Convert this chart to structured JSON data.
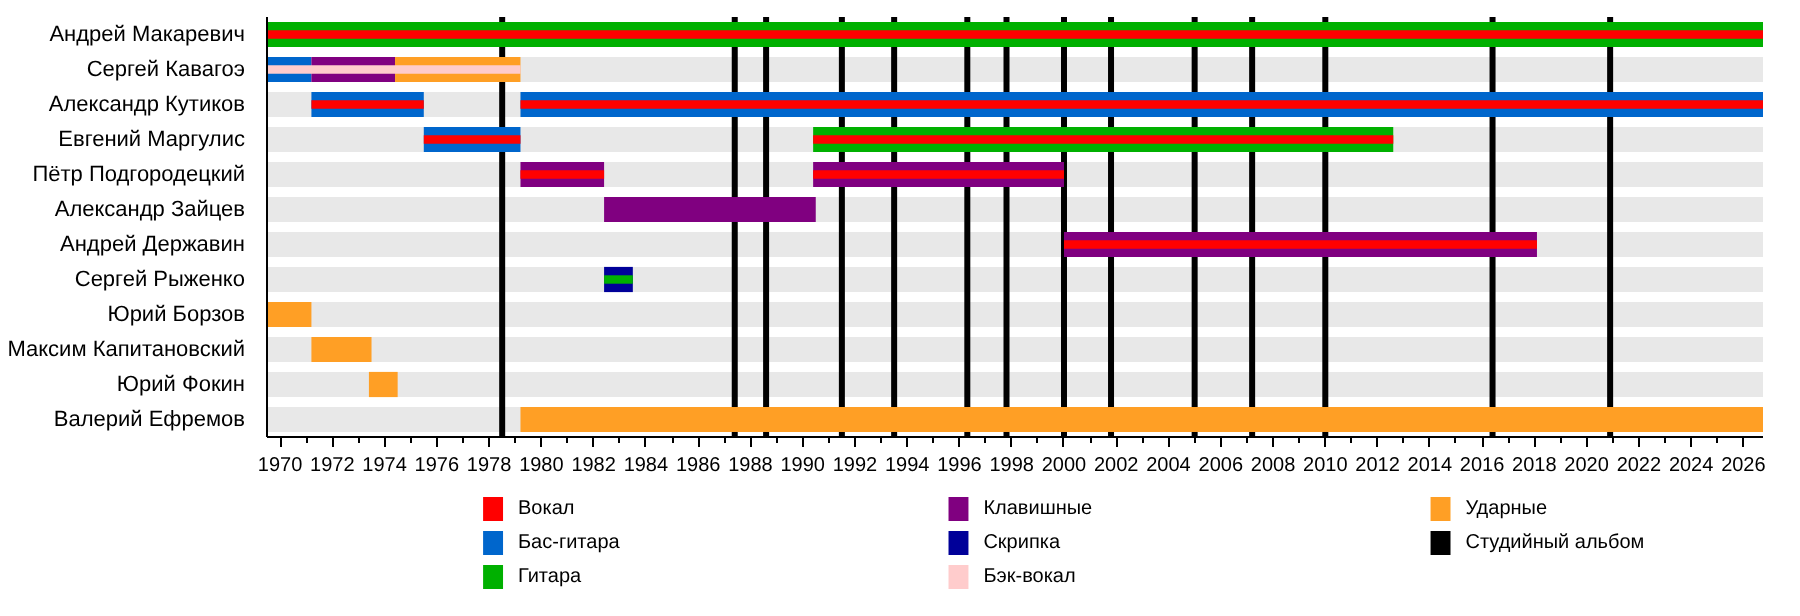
{
  "chart_data": {
    "type": "bar",
    "orientation": "horizontal",
    "categories": [
      "Андрей Макаревич",
      "Сергей Кавагоэ",
      "Александр Кутиков",
      "Евгений Маргулис",
      "Пётр Подгородецкий",
      "Александр Зайцев",
      "Андрей Державин",
      "Сергей Рыженко",
      "Юрий Борзов",
      "Максим Капитановский",
      "Юрий Фокин",
      "Валерий Ефремов"
    ],
    "series": [
      {
        "name": "Вокал",
        "color": "#ff0000",
        "base": [
          1969.5,
          null,
          1971.2,
          1975.5,
          1979.2,
          null,
          2000.0,
          null,
          null,
          null,
          null,
          null
        ],
        "values": [
          57.25,
          null,
          4.3,
          3.7,
          3.2,
          null,
          18.1,
          null,
          null,
          null,
          null,
          null
        ]
      },
      {
        "name": "Бас-гитара",
        "color": "#0066cc",
        "base": [
          null,
          1969.5,
          1971.2,
          1975.5,
          null,
          null,
          null,
          null,
          null,
          null,
          null,
          null
        ],
        "values": [
          null,
          1.7,
          4.3,
          3.7,
          null,
          null,
          null,
          null,
          null,
          null,
          null,
          null
        ]
      },
      {
        "name": "Гитара",
        "color": "#00b000",
        "base": [
          1969.5,
          null,
          null,
          null,
          null,
          null,
          null,
          1982.4,
          null,
          null,
          null,
          null
        ],
        "values": [
          57.25,
          null,
          null,
          null,
          null,
          null,
          null,
          1.1,
          null,
          null,
          null,
          null
        ]
      },
      {
        "name": "Клавишные",
        "color": "#800080",
        "base": [
          null,
          1971.2,
          null,
          null,
          1979.2,
          1982.4,
          2000.0,
          null,
          null,
          null,
          null,
          null
        ],
        "values": [
          null,
          3.2,
          null,
          null,
          3.2,
          8.1,
          18.1,
          null,
          null,
          null,
          null,
          null
        ]
      },
      {
        "name": "Скрипка",
        "color": "#000099",
        "base": [
          null,
          null,
          null,
          null,
          null,
          null,
          null,
          1982.4,
          null,
          null,
          null,
          null
        ],
        "values": [
          null,
          null,
          null,
          null,
          null,
          null,
          null,
          1.1,
          null,
          null,
          null,
          null
        ]
      },
      {
        "name": "Бэк-вокал",
        "color": "#ffcccc",
        "base": [
          null,
          1969.5,
          null,
          null,
          null,
          null,
          null,
          null,
          null,
          null,
          null,
          null
        ],
        "values": [
          null,
          9.7,
          null,
          null,
          null,
          null,
          null,
          null,
          null,
          null,
          null,
          null
        ]
      },
      {
        "name": "Ударные",
        "color": "#ff9f25",
        "base": [
          null,
          1974.4,
          null,
          null,
          null,
          null,
          null,
          null,
          1969.5,
          1971.2,
          1973.4,
          1979.2
        ],
        "values": [
          null,
          4.8,
          null,
          null,
          null,
          null,
          null,
          null,
          1.7,
          2.3,
          1.1,
          47.55
        ]
      },
      {
        "color": "#ff0000",
        "base": [
          null,
          null,
          1979.2,
          1990.4,
          1990.4,
          null,
          null,
          null,
          null,
          null,
          null,
          null
        ],
        "values": [
          null,
          null,
          47.55,
          22.2,
          9.6,
          null,
          null,
          null,
          null,
          null,
          null,
          null
        ]
      },
      {
        "color": "#0066cc",
        "base": [
          null,
          null,
          1979.2,
          null,
          null,
          null,
          null,
          null,
          null,
          null,
          null,
          null
        ],
        "values": [
          null,
          null,
          47.55,
          null,
          null,
          null,
          null,
          null,
          null,
          null,
          null,
          null
        ]
      },
      {
        "color": "#00b000",
        "base": [
          null,
          null,
          null,
          1990.4,
          null,
          null,
          null,
          null,
          null,
          null,
          null,
          null
        ],
        "values": [
          null,
          null,
          null,
          22.2,
          null,
          null,
          null,
          null,
          null,
          null,
          null,
          null
        ]
      },
      {
        "color": "#800080",
        "base": [
          null,
          null,
          null,
          null,
          1990.4,
          null,
          null,
          null,
          null,
          null,
          null,
          null
        ],
        "values": [
          null,
          null,
          null,
          null,
          9.6,
          null,
          null,
          null,
          null,
          null,
          null,
          null
        ]
      }
    ],
    "ref_lines": [
      {
        "axis": "x",
        "value": 1978.5,
        "color": "#000000",
        "label": "Студийный альбом"
      },
      {
        "axis": "x",
        "value": 1987.4,
        "color": "#000000"
      },
      {
        "axis": "x",
        "value": 1988.6,
        "color": "#000000"
      },
      {
        "axis": "x",
        "value": 1991.5,
        "color": "#000000"
      },
      {
        "axis": "x",
        "value": 1993.5,
        "color": "#000000"
      },
      {
        "axis": "x",
        "value": 1996.3,
        "color": "#000000"
      },
      {
        "axis": "x",
        "value": 1997.8,
        "color": "#000000"
      },
      {
        "axis": "x",
        "value": 2000.0,
        "color": "#000000"
      },
      {
        "axis": "x",
        "value": 2001.8,
        "color": "#000000"
      },
      {
        "axis": "x",
        "value": 2005.0,
        "color": "#000000"
      },
      {
        "axis": "x",
        "value": 2007.2,
        "color": "#000000"
      },
      {
        "axis": "x",
        "value": 2010.0,
        "color": "#000000"
      },
      {
        "axis": "x",
        "value": 2016.4,
        "color": "#000000"
      },
      {
        "axis": "x",
        "value": 2020.9,
        "color": "#000000"
      }
    ],
    "xlim": [
      1969.5,
      2026.75
    ],
    "xticks": [
      1970,
      {
        "value": 1971,
        "label": null
      },
      1972,
      {
        "value": 1973,
        "label": null
      },
      1974,
      {
        "value": 1975,
        "label": null
      },
      1976,
      {
        "value": 1977,
        "label": null
      },
      1978,
      {
        "value": 1979,
        "label": null
      },
      1980,
      {
        "value": 1981,
        "label": null
      },
      1982,
      {
        "value": 1983,
        "label": null
      },
      1984,
      {
        "value": 1985,
        "label": null
      },
      1986,
      {
        "value": 1987,
        "label": null
      },
      1988,
      {
        "value": 1989,
        "label": null
      },
      1990,
      {
        "value": 1991,
        "label": null
      },
      1992,
      {
        "value": 1993,
        "label": null
      },
      1994,
      {
        "value": 1995,
        "label": null
      },
      1996,
      {
        "value": 1997,
        "label": null
      },
      1998,
      {
        "value": 1999,
        "label": null
      },
      2000,
      {
        "value": 2001,
        "label": null
      },
      2002,
      {
        "value": 2003,
        "label": null
      },
      2004,
      {
        "value": 2005,
        "label": null
      },
      2006,
      {
        "value": 2007,
        "label": null
      },
      2008,
      {
        "value": 2009,
        "label": null
      },
      2010,
      {
        "value": 2011,
        "label": null
      },
      2012,
      {
        "value": 2013,
        "label": null
      },
      2014,
      {
        "value": 2015,
        "label": null
      },
      2016,
      {
        "value": 2017,
        "label": null
      },
      2018,
      {
        "value": 2019,
        "label": null
      },
      2020,
      {
        "value": 2021,
        "label": null
      },
      2022,
      {
        "value": 2023,
        "label": null
      },
      2024,
      {
        "value": 2025,
        "label": null
      },
      2026
    ],
    "grid": false,
    "legend": "bottom"
  }
}
